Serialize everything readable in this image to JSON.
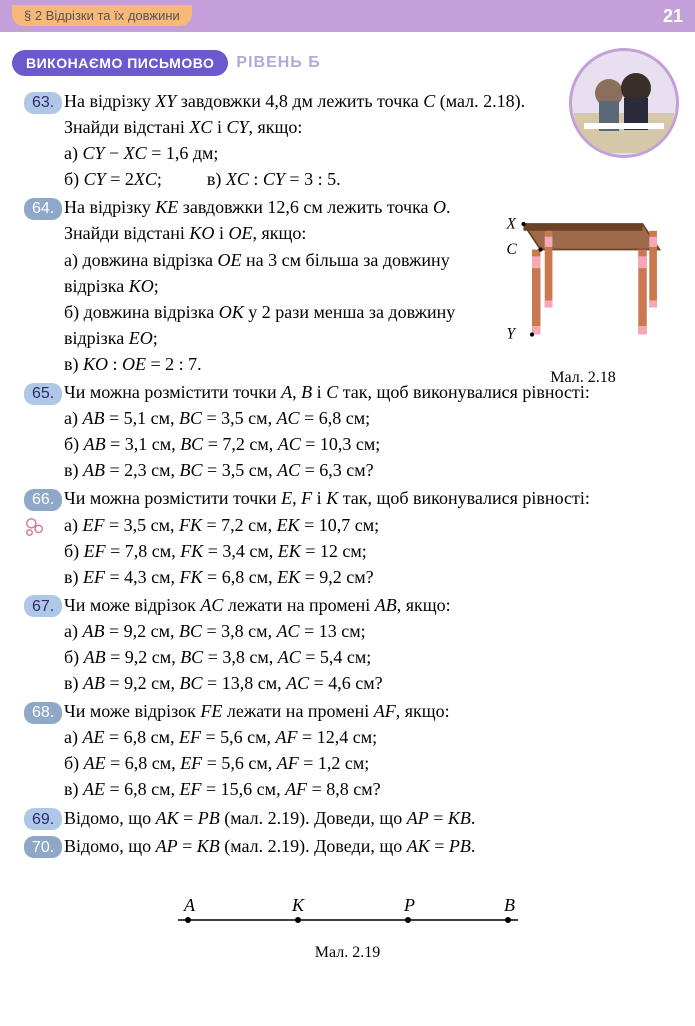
{
  "header": {
    "section": "§ 2  Відрізки та їх довжини",
    "page_number": "21",
    "title": "ВИКОНАЄМО ПИСЬМОВО",
    "level": "РІВЕНЬ Б"
  },
  "figures": {
    "f218": {
      "caption": "Мал. 2.18",
      "label_x": "X",
      "label_c": "C",
      "label_y": "Y",
      "table_top_color": "#9d6b4a",
      "table_edge_color": "#6b4226",
      "leg_color": "#c97850",
      "leg_accent": "#f4a8b8"
    },
    "f219": {
      "caption": "Мал. 2.19",
      "points": [
        "A",
        "K",
        "P",
        "B"
      ]
    }
  },
  "problems": [
    {
      "num": "63.",
      "shaded": false,
      "narrow": "narrow2",
      "lines": [
        "На відрізку <i>XY</i> завдовжки 4,8 дм лежить точка <i>C</i> (мал. 2.18). Знайди відстані <i>XC</i> і <i>CY</i>, якщо:",
        "а) <i>CY</i> − <i>XC</i> = 1,6 дм;",
        "б) <i>CY</i> = 2<i>XC</i>;&nbsp;&nbsp;&nbsp;&nbsp;&nbsp;&nbsp;&nbsp;&nbsp;&nbsp;&nbsp;в) <i>XC</i> : <i>CY</i> = 3 : 5."
      ]
    },
    {
      "num": "64.",
      "shaded": true,
      "narrow": "narrow",
      "lines": [
        "На відрізку <i>KE</i> завдовжки 12,6 см лежить точка <i>O</i>. Знайди відстані <i>KO</i> і <i>OE</i>, якщо:",
        "а) довжина відрізка <i>OE</i> на 3 см більша за довжину відрізка <i>KO</i>;",
        "б) довжина відрізка <i>OK</i> у 2 рази менша за довжину відрізка <i>EO</i>;",
        "в) <i>KO</i> : <i>OE</i> = 2 : 7."
      ]
    },
    {
      "num": "65.",
      "shaded": false,
      "narrow": "",
      "lines": [
        "Чи можна розмістити точки <i>A</i>, <i>B</i> і <i>C</i> так, щоб виконувалися рівності:",
        "а) <i>AB</i> = 5,1 см, <i>BC</i> = 3,5 см, <i>AC</i> = 6,8 см;",
        "б) <i>AB</i> = 3,1 см, <i>BC</i> = 7,2 см, <i>AC</i> = 10,3 см;",
        "в) <i>AB</i> = 2,3 см, <i>BC</i> = 3,5 см, <i>AC</i> = 6,3 см?"
      ]
    },
    {
      "num": "66.",
      "shaded": true,
      "narrow": "",
      "decor": true,
      "lines": [
        "Чи можна розмістити точки <i>E</i>, <i>F</i> і <i>K</i> так, щоб виконувалися рівності:",
        "а) <i>EF</i> = 3,5 см, <i>FK</i> = 7,2 см, <i>EK</i> = 10,7 см;",
        "б) <i>EF</i> = 7,8 см, <i>FK</i> = 3,4 см, <i>EK</i> = 12 см;",
        "в) <i>EF</i> = 4,3 см, <i>FK</i> = 6,8 см, <i>EK</i> = 9,2 см?"
      ]
    },
    {
      "num": "67.",
      "shaded": false,
      "narrow": "",
      "lines": [
        "Чи може відрізок <i>AC</i> лежати на промені <i>AB</i>, якщо:",
        "а) <i>AB</i> = 9,2 см, <i>BC</i> = 3,8 см, <i>AC</i> = 13 см;",
        "б) <i>AB</i> = 9,2 см, <i>BC</i> = 3,8 см, <i>AC</i> = 5,4 см;",
        "в) <i>AB</i> = 9,2 см, <i>BC</i> = 13,8 см, <i>AC</i> = 4,6 см?"
      ]
    },
    {
      "num": "68.",
      "shaded": true,
      "narrow": "",
      "lines": [
        "Чи може відрізок <i>FE</i> лежати на промені <i>AF</i>, якщо:",
        "а) <i>AE</i> = 6,8 см, <i>EF</i> = 5,6 см, <i>AF</i> = 12,4 см;",
        "б) <i>AE</i> = 6,8 см, <i>EF</i> = 5,6 см, <i>AF</i> = 1,2 см;",
        "в) <i>AE</i> = 6,8 см, <i>EF</i> = 15,6 см, <i>AF</i> = 8,8 см?"
      ]
    },
    {
      "num": "69.",
      "shaded": false,
      "narrow": "",
      "lines": [
        "Відомо, що <i>AK</i> = <i>PB</i> (мал. 2.19). Доведи, що <i>AP</i> = <i>KB</i>."
      ]
    },
    {
      "num": "70.",
      "shaded": true,
      "narrow": "",
      "lines": [
        "Відомо, що <i>AP</i> = <i>KB</i> (мал. 2.19). Доведи, що <i>AK</i> = <i>PB</i>."
      ]
    }
  ]
}
